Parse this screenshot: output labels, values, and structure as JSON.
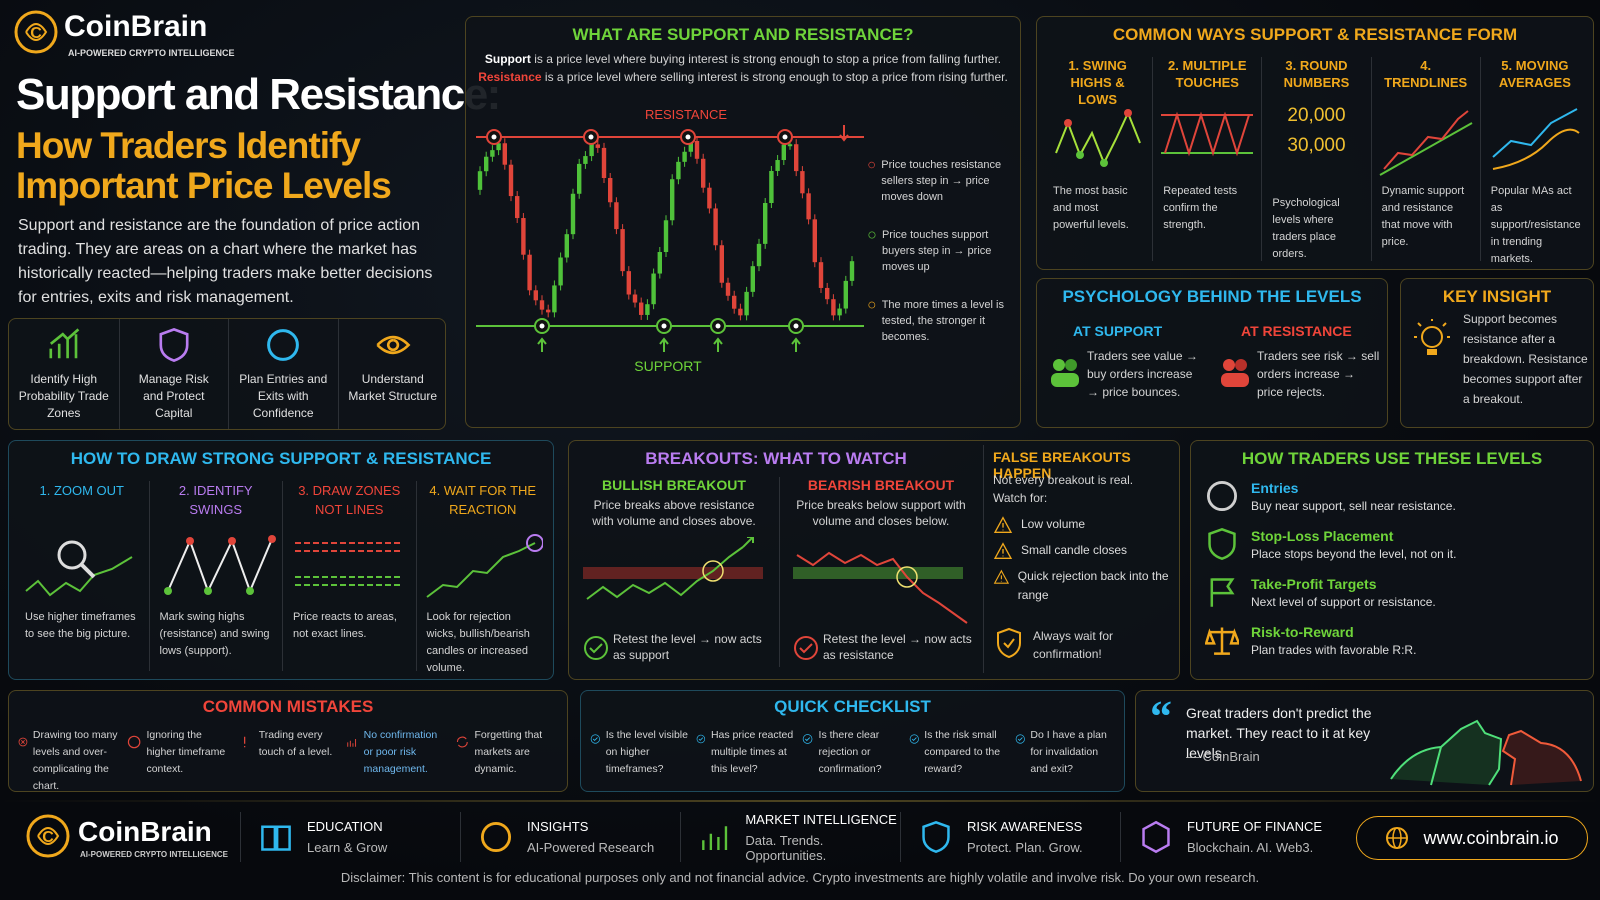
{
  "header": {
    "brand": "CoinBrain",
    "tagline": "AI-POWERED CRYPTO INTELLIGENCE",
    "title": "Support and Resistance:",
    "subtitle_lines": [
      "How Traders Identify",
      "Important Price Levels"
    ],
    "intro": "Support and resistance are the foundation of price action trading. They are areas on a chart where the market has historically reacted—helping traders make better decisions for entries, exits and risk management."
  },
  "benefits": [
    "Identify High Probability Trade Zones",
    "Manage Risk and Protect Capital",
    "Plan Entries and Exits with Confidence",
    "Understand Market Structure"
  ],
  "what_are": {
    "title": "WHAT ARE SUPPORT AND RESISTANCE?",
    "support_def": {
      "term": "Support",
      "text": "is a price level where buying interest is strong enough to stop a price from falling further."
    },
    "resistance_def": {
      "term": "Resistance",
      "text": "is a price level where selling interest is strong enough to stop a price from rising further."
    },
    "resistance_label": "RESISTANCE",
    "support_label": "SUPPORT",
    "notes": [
      "Price touches resistance sellers step in → price moves down",
      "Price touches support buyers step in → price moves up",
      "The more times a level is tested, the stronger it becomes."
    ]
  },
  "common_ways": {
    "title": "COMMON WAYS SUPPORT & RESISTANCE FORM",
    "items": [
      {
        "title": "1. SWING HIGHS & LOWS",
        "text": "The most basic and most powerful levels."
      },
      {
        "title": "2. MULTIPLE TOUCHES",
        "text": "Repeated tests confirm the strength."
      },
      {
        "title": "3. ROUND NUMBERS",
        "text": "Psychological levels where traders place orders."
      },
      {
        "title": "4. TRENDLINES",
        "text": "Dynamic support and resistance that move with price."
      },
      {
        "title": "5. MOVING AVERAGES",
        "text": "Popular MAs act as support/resistance in trending markets."
      }
    ],
    "round_numbers": [
      "20,000",
      "30,000"
    ]
  },
  "psychology": {
    "title": "PSYCHOLOGY BEHIND THE LEVELS",
    "at_support": {
      "heading": "AT SUPPORT",
      "text": "Traders see value → buy orders increase → price bounces."
    },
    "at_resistance": {
      "heading": "AT RESISTANCE",
      "text": "Traders see risk → sell orders increase → price rejects."
    }
  },
  "key_insight": {
    "title": "KEY INSIGHT",
    "text": "Support becomes resistance after a breakdown. Resistance becomes support after a breakout."
  },
  "how_to_draw": {
    "title": "HOW TO DRAW STRONG SUPPORT & RESISTANCE",
    "steps": [
      {
        "title": "1. ZOOM OUT",
        "text": "Use higher timeframes to see the big picture."
      },
      {
        "title": "2. IDENTIFY SWINGS",
        "text": "Mark swing highs (resistance) and swing lows (support)."
      },
      {
        "title": "3. DRAW ZONES NOT LINES",
        "text": "Price reacts to areas, not exact lines."
      },
      {
        "title": "4. WAIT FOR THE REACTION",
        "text": "Look for rejection wicks, bullish/bearish candles or increased volume."
      }
    ]
  },
  "breakouts": {
    "title": "BREAKOUTS: WHAT TO WATCH",
    "bullish": {
      "title": "BULLISH BREAKOUT",
      "text": "Price breaks above resistance with volume and closes above.",
      "retest": "Retest the level → now acts as support"
    },
    "bearish": {
      "title": "BEARISH BREAKOUT",
      "text": "Price breaks below support with volume and closes below.",
      "retest": "Retest the level → now acts as resistance"
    }
  },
  "false_breakouts": {
    "title": "FALSE BREAKOUTS HAPPEN",
    "intro": "Not every breakout is real. Watch for:",
    "items": [
      "Low volume",
      "Small candle closes",
      "Quick rejection back into the range"
    ],
    "final": "Always wait for confirmation!"
  },
  "how_traders_use": {
    "title": "HOW TRADERS USE THESE LEVELS",
    "items": [
      {
        "title": "Entries",
        "text": "Buy near support, sell near resistance."
      },
      {
        "title": "Stop-Loss Placement",
        "text": "Place stops beyond the level, not on it."
      },
      {
        "title": "Take-Profit Targets",
        "text": "Next level of support or resistance."
      },
      {
        "title": "Risk-to-Reward",
        "text": "Plan trades with favorable R:R."
      }
    ]
  },
  "common_mistakes": {
    "title": "COMMON MISTAKES",
    "items": [
      "Drawing too many levels and over-complicating the chart.",
      "Ignoring the higher timeframe context.",
      "Trading every touch of a level.",
      "No confirmation or poor risk management.",
      "Forgetting that markets are dynamic."
    ]
  },
  "checklist": {
    "title": "QUICK CHECKLIST",
    "items": [
      "Is the level visible on higher timeframes?",
      "Has price reacted multiple times at this level?",
      "Is there clear rejection or confirmation?",
      "Is the risk small compared to the reward?",
      "Do I have a plan for invalidation and exit?"
    ]
  },
  "quote": {
    "text": "Great traders don't predict the market. They react to it at key levels.",
    "author": "— CoinBrain"
  },
  "footer": {
    "brand": "CoinBrain",
    "tagline": "AI-POWERED CRYPTO INTELLIGENCE",
    "items": [
      {
        "title": "EDUCATION",
        "text": "Learn & Grow"
      },
      {
        "title": "INSIGHTS",
        "text": "AI-Powered Research"
      },
      {
        "title": "MARKET INTELLIGENCE",
        "text": "Data. Trends. Opportunities."
      },
      {
        "title": "RISK AWARENESS",
        "text": "Protect. Plan. Grow."
      },
      {
        "title": "FUTURE OF FINANCE",
        "text": "Blockchain. AI. Web3."
      }
    ],
    "url": "www.coinbrain.io",
    "disclaimer": "Disclaimer: This content is for educational purposes only and not financial advice. Crypto investments are highly volatile and involve risk. Do your own research."
  }
}
